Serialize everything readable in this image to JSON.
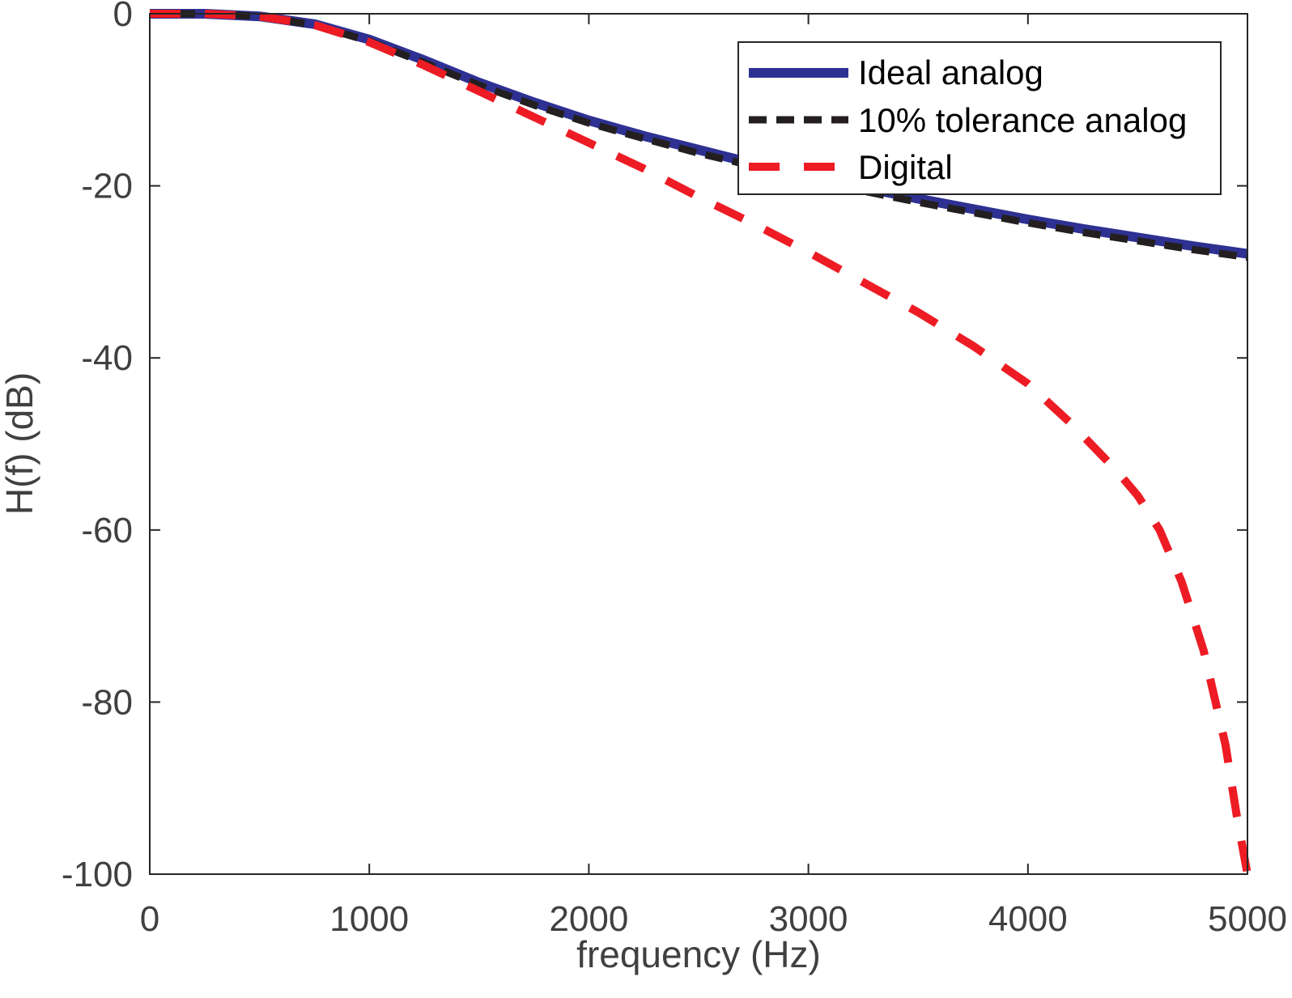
{
  "chart_data": {
    "type": "line",
    "title": "",
    "xlabel": "frequency (Hz)",
    "ylabel": "H(f)  (dB)",
    "xlim": [
      0,
      5000
    ],
    "ylim": [
      -100,
      0
    ],
    "xticks": [
      0,
      1000,
      2000,
      3000,
      4000,
      5000
    ],
    "xtick_labels": [
      "0",
      "1000",
      "2000",
      "3000",
      "4000",
      "5000"
    ],
    "yticks": [
      0,
      -20,
      -40,
      -60,
      -80,
      -100
    ],
    "ytick_labels": [
      "0",
      "-20",
      "-40",
      "-60",
      "-80",
      "-100"
    ],
    "grid": false,
    "legend_position": "top-right",
    "series": [
      {
        "name": "Ideal analog",
        "color": "#2e3192",
        "style": "solid",
        "x": [
          0,
          250,
          500,
          750,
          1000,
          1250,
          1500,
          1750,
          2000,
          2250,
          2500,
          2750,
          3000,
          3250,
          3500,
          3750,
          4000,
          4250,
          4500,
          4750,
          5000
        ],
        "y": [
          0,
          0,
          -0.3,
          -1.2,
          -3.0,
          -5.4,
          -8.0,
          -10.3,
          -12.4,
          -14.2,
          -15.8,
          -17.4,
          -18.8,
          -20.2,
          -21.5,
          -22.7,
          -23.9,
          -25.0,
          -26.0,
          -27.0,
          -27.9
        ]
      },
      {
        "name": "10% tolerance analog",
        "color": "#231f20",
        "style": "dashed",
        "x": [
          0,
          250,
          500,
          750,
          1000,
          1250,
          1500,
          1750,
          2000,
          2250,
          2500,
          2750,
          3000,
          3250,
          3500,
          3750,
          4000,
          4250,
          4500,
          4750,
          5000
        ],
        "y": [
          0,
          0,
          -0.3,
          -1.3,
          -3.2,
          -5.7,
          -8.3,
          -10.6,
          -12.7,
          -14.5,
          -16.2,
          -17.7,
          -19.2,
          -20.6,
          -21.9,
          -23.1,
          -24.3,
          -25.4,
          -26.4,
          -27.4,
          -28.3
        ]
      },
      {
        "name": "Digital",
        "color": "#ed1c24",
        "style": "dashed",
        "x": [
          0,
          250,
          500,
          750,
          1000,
          1250,
          1500,
          1750,
          2000,
          2250,
          2500,
          2750,
          3000,
          3250,
          3500,
          3750,
          4000,
          4200,
          4400,
          4500,
          4600,
          4700,
          4800,
          4900,
          4950,
          5000
        ],
        "y": [
          0,
          0,
          -0.3,
          -1.3,
          -3.3,
          -6.0,
          -9.0,
          -12.0,
          -15.0,
          -18.0,
          -21.3,
          -24.4,
          -27.7,
          -31.2,
          -34.7,
          -38.6,
          -43.0,
          -47.7,
          -53.0,
          -56.0,
          -60.0,
          -66.0,
          -74.0,
          -85.0,
          -93.0,
          -100.0
        ]
      }
    ]
  }
}
